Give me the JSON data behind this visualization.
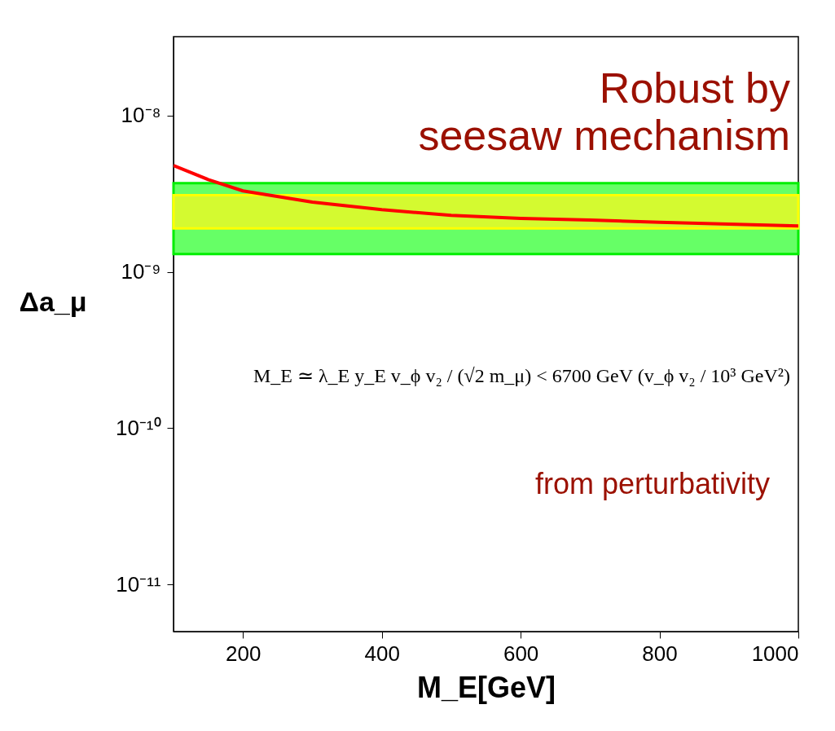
{
  "chart_data": {
    "type": "line",
    "xlabel": "M_E[GeV]",
    "ylabel": "Δa_μ",
    "x": [
      100,
      150,
      200,
      300,
      400,
      500,
      600,
      700,
      800,
      900,
      1000
    ],
    "series": [
      {
        "color": "#ff0000",
        "values": [
          4.8e-09,
          3.9e-09,
          3.3e-09,
          2.8e-09,
          2.5e-09,
          2.3e-09,
          2.2e-09,
          2.15e-09,
          2.08e-09,
          2.02e-09,
          1.97e-09
        ]
      }
    ],
    "xlim": [
      100,
      1000
    ],
    "xticks": [
      200,
      400,
      600,
      800,
      1000
    ],
    "ylim": [
      5e-12,
      3.2e-08
    ],
    "yticks": [
      {
        "value": 1e-11,
        "label": "10⁻¹¹"
      },
      {
        "value": 1e-10,
        "label": "10⁻¹⁰"
      },
      {
        "value": 1e-09,
        "label": "10⁻⁹"
      },
      {
        "value": 1e-08,
        "label": "10⁻⁸"
      }
    ],
    "log": "y",
    "grid": false,
    "marker": "none",
    "line_style": "solid",
    "bands": [
      {
        "axis": "y",
        "from": 1.3e-09,
        "to": 3.7e-09,
        "color": "#66ff66"
      },
      {
        "axis": "y",
        "from": 1.9e-09,
        "to": 3.1e-09,
        "color": "#d4fa30"
      }
    ],
    "annotations": [
      "Robust by\nseesaw mechanism",
      "M_E ≃ λ_E y_E v_ϕ v₂ / (√2 m_μ) < 6700 GeV (v_ϕ v₂ / 10³ GeV²)",
      "from perturbativity"
    ]
  }
}
